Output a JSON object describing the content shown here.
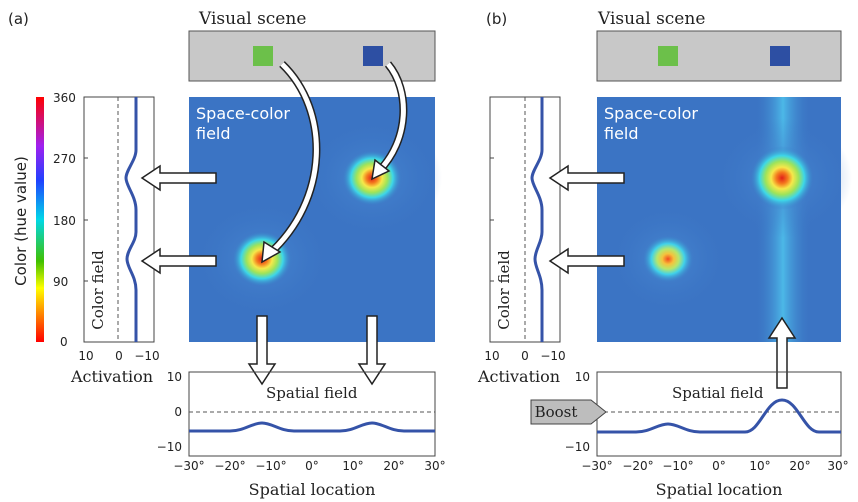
{
  "panel_a": {
    "label": "(a)",
    "scene_title": "Visual scene",
    "field_title_1": "Space-color",
    "field_title_2": "field",
    "color_field_label": "Color field",
    "activation_label": "Activation",
    "spatial_field_label": "Spatial field",
    "spatial_location_label": "Spatial location"
  },
  "panel_b": {
    "label": "(b)",
    "scene_title": "Visual scene",
    "field_title_1": "Space-color",
    "field_title_2": "field",
    "color_field_label": "Color field",
    "activation_label": "Activation",
    "spatial_field_label": "Spatial field",
    "spatial_location_label": "Spatial location",
    "boost_label": "Boost"
  },
  "colorbar": {
    "label": "Color (hue value)",
    "ticks": [
      "360",
      "270",
      "180",
      "90",
      "0"
    ]
  },
  "activation_ticks": [
    "10",
    "0",
    "−10"
  ],
  "spatial_y_ticks": [
    "10",
    "0",
    "−10"
  ],
  "spatial_x_ticks": [
    "−30°",
    "−20°",
    "−10°",
    "0°",
    "10°",
    "20°",
    "30°"
  ],
  "colors": {
    "scene_bg": "#c8c8c8",
    "green_square": "#6cc04a",
    "blue_square": "#2d4fa3",
    "field_bg": "#3b74c4",
    "curve": "#3553a8"
  }
}
